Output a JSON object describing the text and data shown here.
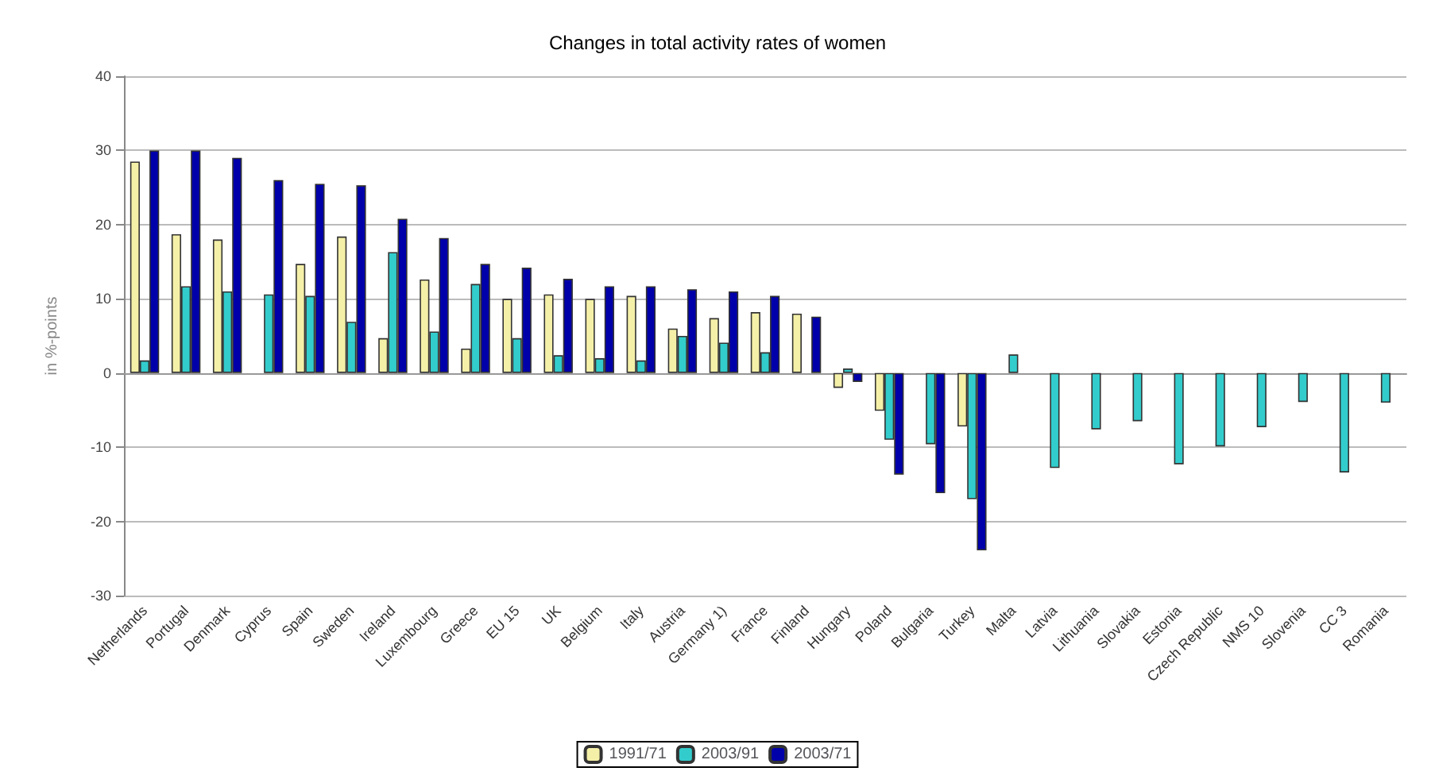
{
  "chart_data": {
    "type": "bar",
    "title": "Changes in total activity rates of women",
    "ylabel": "in %-points",
    "categories": [
      "Netherlands",
      "Portugal",
      "Denmark",
      "Cyprus",
      "Spain",
      "Sweden",
      "Ireland",
      "Luxembourg",
      "Greece",
      "EU 15",
      "UK",
      "Belgium",
      "Italy",
      "Austria",
      "Germany 1)",
      "France",
      "Finland",
      "Hungary",
      "Poland",
      "Bulgaria",
      "Turkey",
      "Malta",
      "Latvia",
      "Lithuania",
      "Slovakia",
      "Estonia",
      "Czech Republic",
      "NMS 10",
      "Slovenia",
      "CC 3",
      "Romania"
    ],
    "series": [
      {
        "name": "1991/71",
        "color": "#f5f0a8",
        "values": [
          28.5,
          18.7,
          18,
          null,
          14.7,
          18.4,
          4.7,
          12.6,
          3.3,
          10,
          10.6,
          10,
          10.4,
          6,
          7.4,
          8.2,
          8,
          -2,
          -5.1,
          null,
          -7.2,
          null,
          null,
          null,
          null,
          null,
          null,
          null,
          null,
          null,
          null
        ]
      },
      {
        "name": "2003/91",
        "color": "#33cccc",
        "values": [
          1.7,
          11.7,
          11,
          10.6,
          10.4,
          6.9,
          16.3,
          5.6,
          12,
          4.7,
          2.4,
          2,
          1.7,
          5,
          4.1,
          2.8,
          null,
          0.6,
          -9,
          -9.6,
          -17,
          2.5,
          -12.8,
          -7.6,
          -6.5,
          -12.3,
          -9.9,
          -7.3,
          -3.9,
          -13.4,
          -4
        ]
      },
      {
        "name": "2003/71",
        "color": "#0000aa",
        "values": [
          30,
          30,
          29,
          26,
          25.5,
          25.3,
          20.8,
          18.2,
          14.7,
          14.2,
          12.7,
          11.7,
          11.7,
          11.3,
          11,
          10.4,
          7.6,
          -1.2,
          -13.7,
          -16.2,
          -23.9,
          null,
          null,
          null,
          null,
          null,
          null,
          null,
          null,
          null,
          null
        ]
      }
    ],
    "ylim": [
      -30,
      40
    ],
    "yticks": [
      -30,
      -20,
      -10,
      0,
      10,
      20,
      30,
      40
    ],
    "grid": "y",
    "legend": "bottom"
  }
}
